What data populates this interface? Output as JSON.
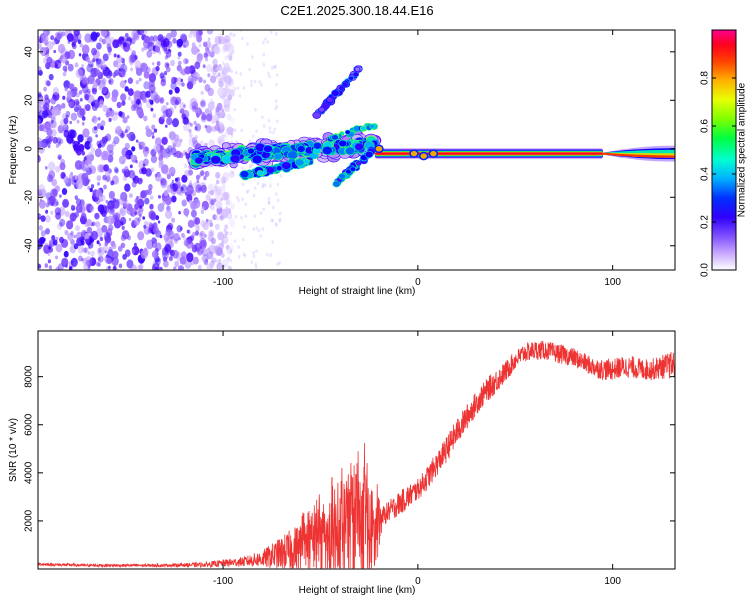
{
  "chart_data": [
    {
      "type": "heatmap",
      "title": "C2E1.2025.300.18.44.E16",
      "xlabel": "Height of straight line (km)",
      "ylabel": "Frequency (Hz)",
      "xlim": [
        -195,
        132
      ],
      "ylim": [
        -50,
        49
      ],
      "xticks": [
        {
          "value": -100,
          "label": "-100"
        },
        {
          "value": 0,
          "label": "0"
        },
        {
          "value": 100,
          "label": "100"
        }
      ],
      "yticks": [
        {
          "value": 40,
          "label": "40"
        },
        {
          "value": 20,
          "label": "20"
        },
        {
          "value": 0,
          "label": "0"
        },
        {
          "value": -20,
          "label": "-20"
        },
        {
          "value": -40,
          "label": "-40"
        }
      ],
      "grid": false,
      "features": {
        "noise_region_km": [
          -195,
          -95
        ],
        "turbulent_region_km": [
          -115,
          -20
        ],
        "carrier_line_hz": -2,
        "carrier_start_km": -22,
        "carrier_end_km": 132,
        "carrier_widening_km": 95
      },
      "colorbar": {
        "label": "Normalized spectral amplitude",
        "range": [
          0,
          1
        ],
        "ticks": [
          {
            "value": 0.0,
            "label": "0.0"
          },
          {
            "value": 0.2,
            "label": "0.2"
          },
          {
            "value": 0.4,
            "label": "0.4"
          },
          {
            "value": 0.6,
            "label": "0.6"
          },
          {
            "value": 0.8,
            "label": "0.8"
          }
        ],
        "colors": [
          "#ffffff",
          "#a070ff",
          "#4000ff",
          "#0000ff",
          "#00ccff",
          "#00ff66",
          "#ccff00",
          "#ff8800",
          "#ff0000",
          "#ff0080"
        ]
      }
    },
    {
      "type": "line",
      "xlabel": "Height of straight line (km)",
      "ylabel": "SNR (10 * v/v)",
      "xlim": [
        -195,
        132
      ],
      "ylim": [
        0,
        9900
      ],
      "xticks": [
        {
          "value": -100,
          "label": "-100"
        },
        {
          "value": 0,
          "label": "0"
        },
        {
          "value": 100,
          "label": "100"
        }
      ],
      "yticks": [
        {
          "value": 2000,
          "label": "2000"
        },
        {
          "value": 4000,
          "label": "4000"
        },
        {
          "value": 6000,
          "label": "6000"
        },
        {
          "value": 8000,
          "label": "8000"
        }
      ],
      "grid": false,
      "color": "#ee3333",
      "series": [
        {
          "name": "SNR",
          "x": [
            -195,
            -170,
            -150,
            -130,
            -110,
            -90,
            -80,
            -70,
            -60,
            -50,
            -40,
            -35,
            -30,
            -25,
            -22,
            -18,
            -15,
            -10,
            -5,
            0,
            5,
            10,
            15,
            20,
            25,
            30,
            35,
            40,
            45,
            50,
            55,
            60,
            65,
            70,
            75,
            80,
            85,
            90,
            95,
            100,
            105,
            110,
            115,
            120,
            125,
            132
          ],
          "values": [
            200,
            150,
            150,
            150,
            180,
            300,
            420,
            650,
            900,
            1100,
            1200,
            1250,
            1300,
            1400,
            1500,
            2200,
            2400,
            2700,
            3000,
            3300,
            3800,
            4400,
            5000,
            5700,
            6300,
            6900,
            7400,
            7800,
            8200,
            8700,
            9000,
            9100,
            9100,
            9000,
            8900,
            8800,
            8600,
            8400,
            8300,
            8300,
            8400,
            8400,
            8300,
            8300,
            8400,
            8500
          ],
          "noise_amplitude": [
            60,
            60,
            60,
            60,
            100,
            200,
            350,
            700,
            1100,
            1500,
            2200,
            2600,
            2800,
            2800,
            1800,
            400,
            450,
            500,
            500,
            450,
            500,
            500,
            550,
            550,
            550,
            500,
            500,
            500,
            450,
            400,
            400,
            400,
            400,
            400,
            400,
            400,
            400,
            400,
            450,
            450,
            450,
            450,
            450,
            450,
            500,
            600
          ]
        }
      ]
    }
  ]
}
